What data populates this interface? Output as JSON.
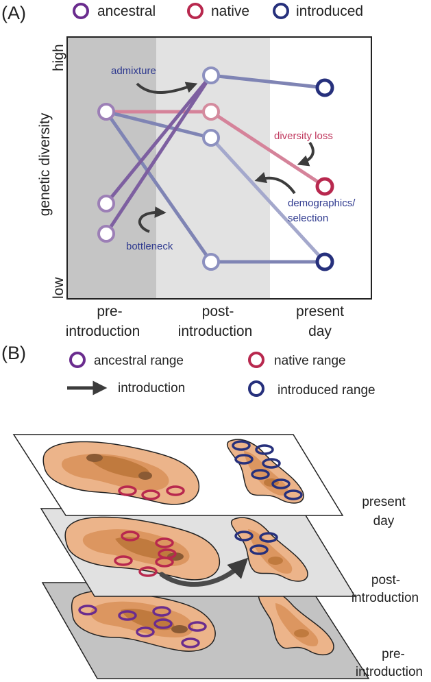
{
  "colors": {
    "ancestral": "#6a2c8e",
    "native": "#b8284e",
    "introduced": "#26307c",
    "ancestral_line": "#7d5fa0",
    "native_line": "#d5839a",
    "introduced_line": "#7f84b4",
    "band_dark": "#c5c5c5",
    "band_light": "#e2e2e2",
    "arrow": "#3c3c3c",
    "map_fill": "#ecb48a"
  },
  "panel_a": {
    "panel_label": "(A)",
    "legend": {
      "ancestral": "ancestral",
      "native": "native",
      "introduced": "introduced"
    },
    "ylabel": "genetic diversity",
    "y_high": "high",
    "y_low": "low",
    "x_labels": [
      {
        "line1": "pre-",
        "line2": "introduction"
      },
      {
        "line1": "post-",
        "line2": "introduction"
      },
      {
        "line1": "present",
        "line2": "day"
      }
    ],
    "annotations": {
      "admixture": "admixture",
      "diversity_loss": "diversity loss",
      "demographics_1": "demographics/",
      "demographics_2": "selection",
      "bottleneck": "bottleneck"
    }
  },
  "panel_b": {
    "panel_label": "(B)",
    "legend": {
      "ancestral_range": "ancestral range",
      "native_range": "native range",
      "introduction": "introduction",
      "introduced_range": "introduced range"
    },
    "layers": [
      {
        "line1": "present",
        "line2": "day"
      },
      {
        "line1": "post-",
        "line2": "introduction"
      },
      {
        "line1": "pre-",
        "line2": "introduction"
      }
    ]
  },
  "icons": [
    "ring-marker-icon",
    "curved-arrow-icon",
    "straight-arrow-icon"
  ]
}
